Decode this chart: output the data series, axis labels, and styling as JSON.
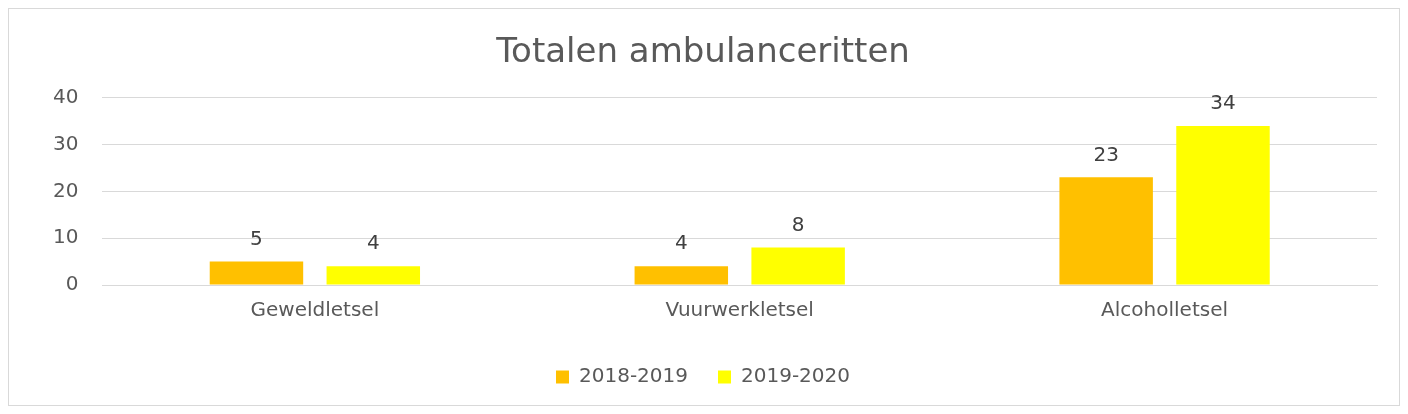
{
  "chart_data": {
    "type": "bar",
    "title": "Totalen ambulanceritten",
    "categories": [
      "Geweldletsel",
      "Vuurwerkletsel",
      "Alcoholletsel"
    ],
    "series": [
      {
        "name": "2018-2019",
        "color": "#ffc000",
        "values": [
          5,
          4,
          23
        ]
      },
      {
        "name": "2019-2020",
        "color": "#ffff00",
        "values": [
          4,
          8,
          34
        ]
      }
    ],
    "ylim": [
      0,
      40
    ],
    "yticks": [
      0,
      10,
      20,
      30,
      40
    ],
    "grid": "y",
    "legend": "bottom",
    "data_labels": true
  }
}
